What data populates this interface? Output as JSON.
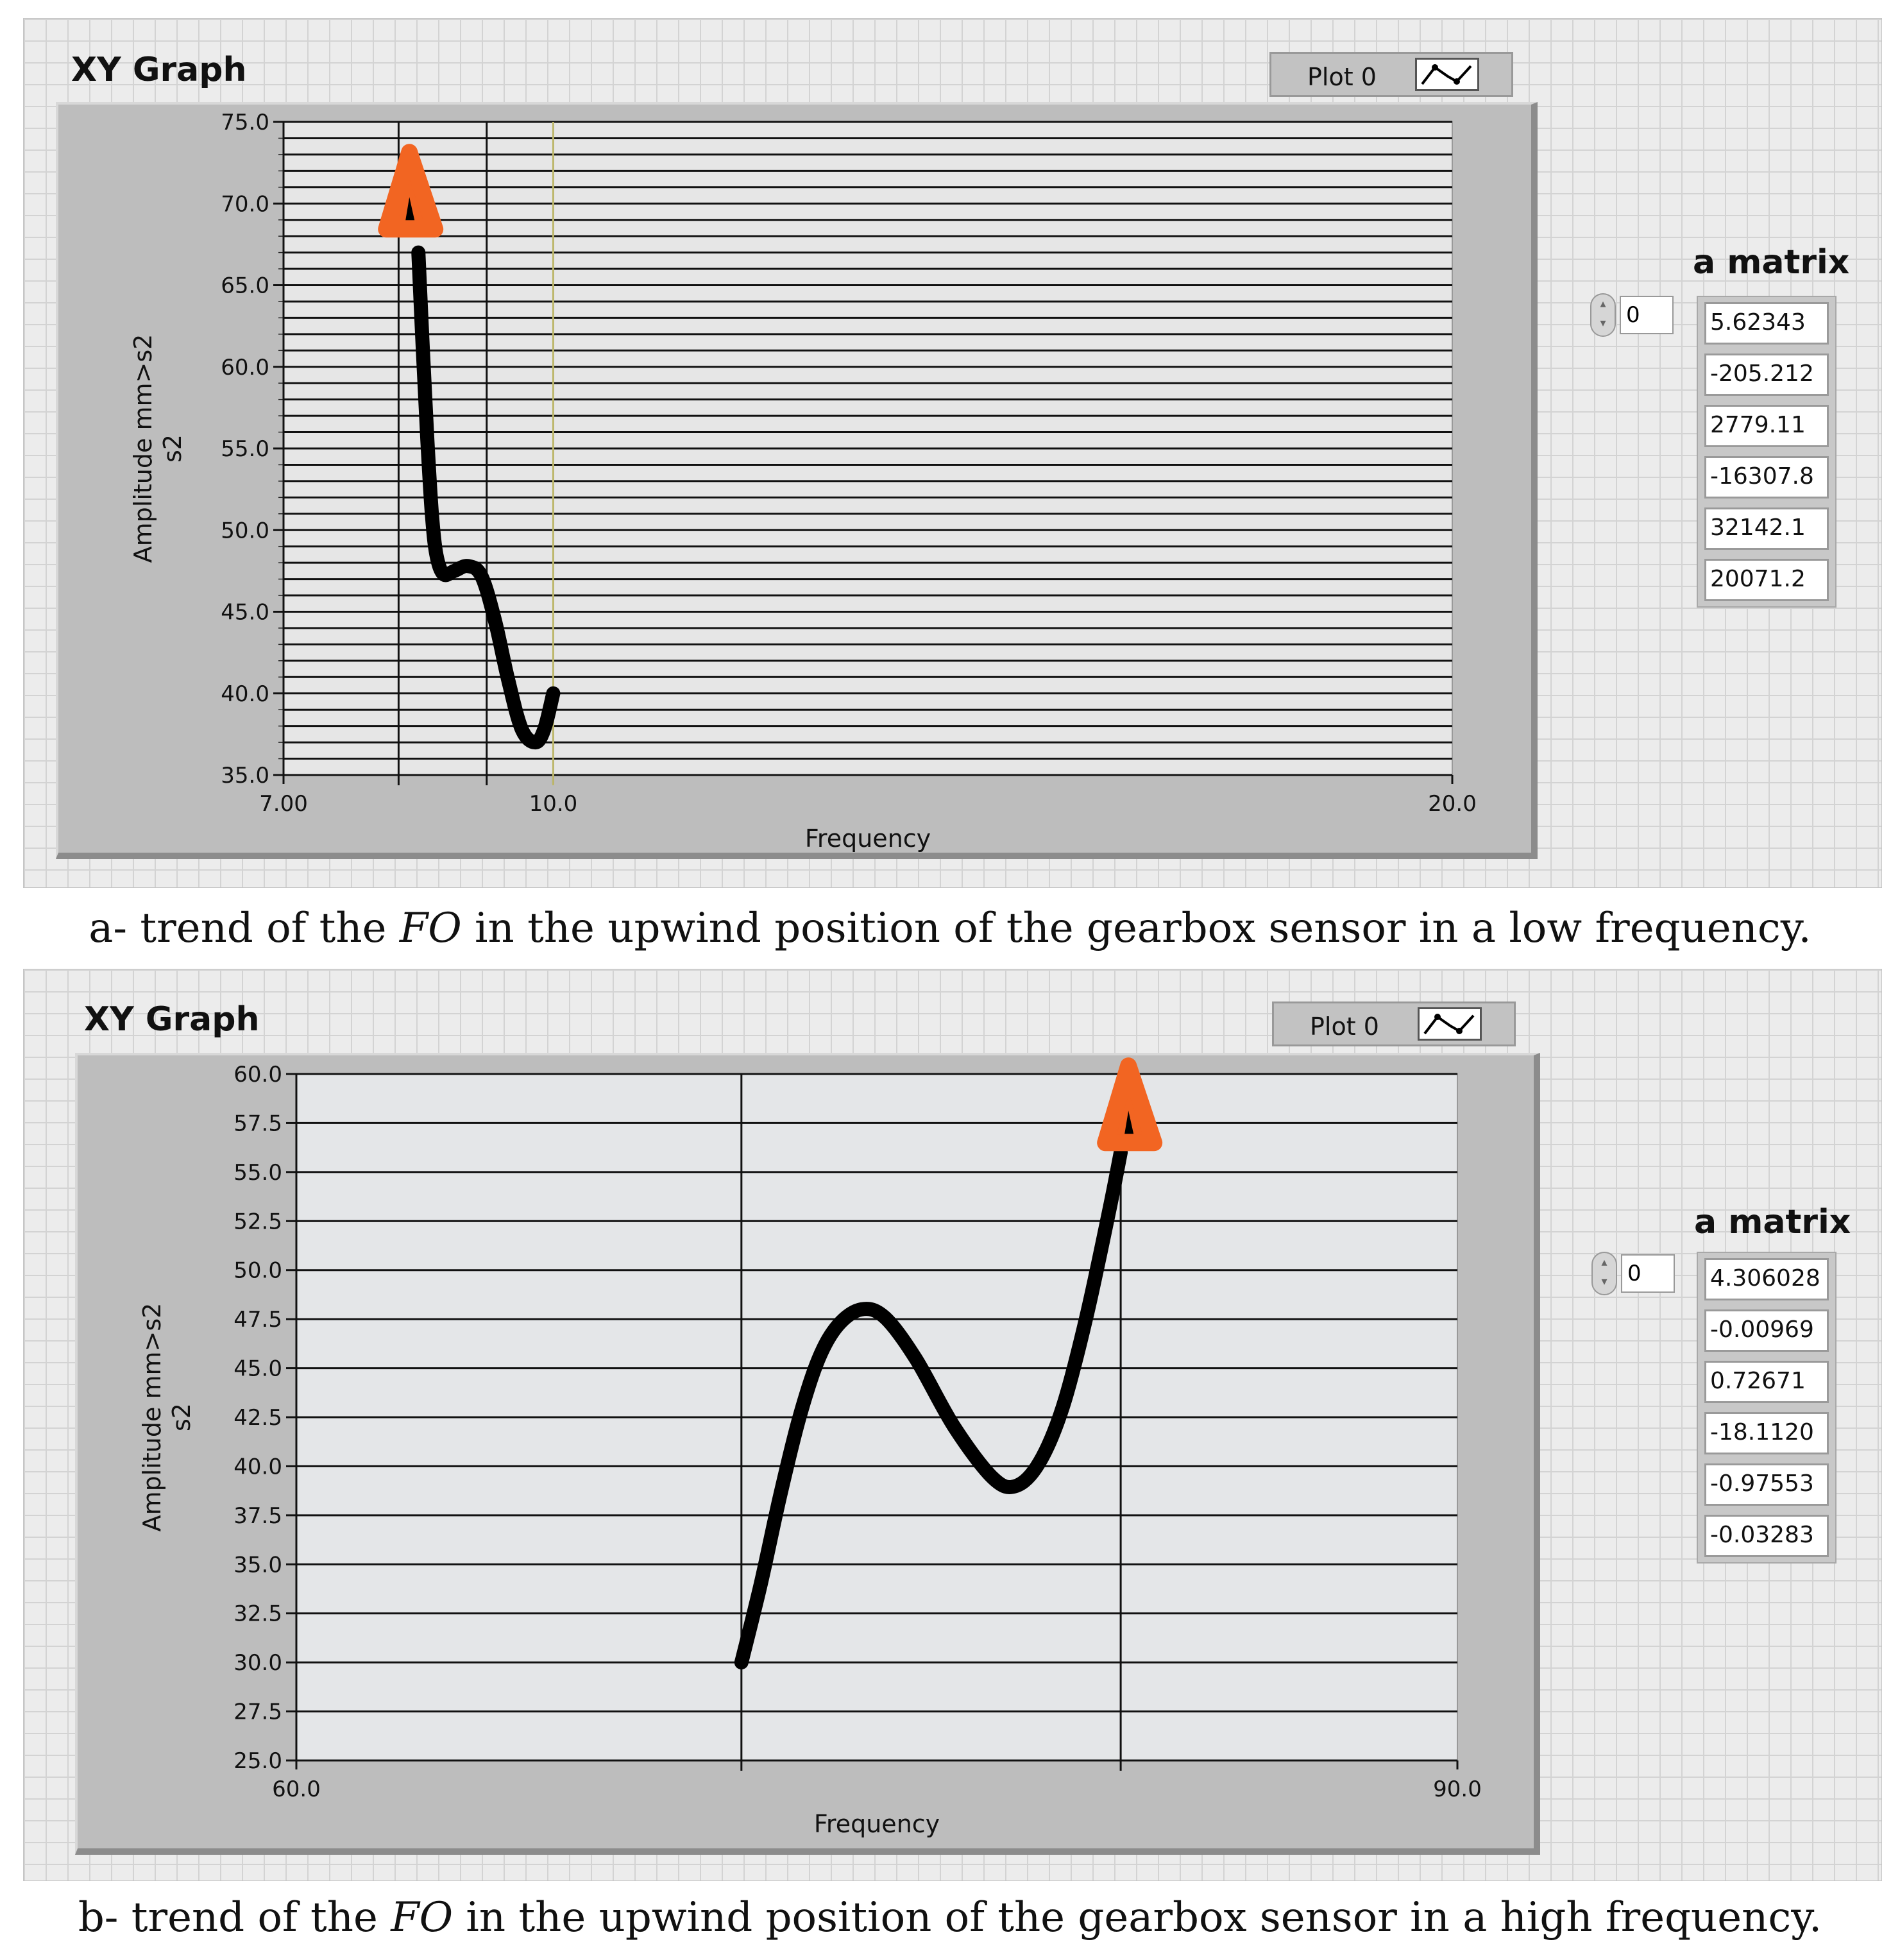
{
  "graphs": [
    {
      "title": "XY Graph",
      "legend_label": "Plot 0",
      "matrix_title": "a matrix",
      "index_value": "0",
      "matrix_values": [
        "5.62343",
        "-205.212",
        "2779.11",
        "-16307.8",
        "32142.1",
        "20071.2"
      ],
      "caption": {
        "prefix": "a- trend of the ",
        "italic": "FO",
        "suffix": " in the upwind position of the gearbox sensor in a low frequency."
      }
    },
    {
      "title": "XY Graph",
      "legend_label": "Plot 0",
      "matrix_title": "a matrix",
      "index_value": "0",
      "matrix_values": [
        "4.306028",
        "-0.00969",
        "0.72671",
        "-18.1120",
        "-0.97553",
        "-0.03283"
      ],
      "caption": {
        "prefix": "b- trend of the ",
        "italic": "FO",
        "suffix": " in the upwind position of the gearbox sensor in a high frequency."
      }
    }
  ],
  "colors": {
    "curve": "#000000",
    "marker": "#f26522",
    "cursor_a": "#bdb76b",
    "plot_bg_a": "#e6e6e6",
    "plot_bg_b": "#e4e6e8"
  },
  "chart_data": [
    {
      "type": "line",
      "xlabel": "Frequency",
      "ylabel": "Amplitude mm>s2 s2",
      "xlim": [
        7.0,
        20.0
      ],
      "ylim": [
        35.0,
        75.0
      ],
      "x_tick_labels": [
        "7.00",
        "10.0",
        "20.0"
      ],
      "x_ticks": [
        7.0,
        10.0,
        20.0
      ],
      "y_tick_labels": [
        "75.0",
        "70.0",
        "65.0",
        "60.0",
        "55.0",
        "50.0",
        "45.0",
        "40.0",
        "35.0"
      ],
      "y_ticks": [
        75,
        70,
        65,
        60,
        55,
        50,
        45,
        40,
        35
      ],
      "grid": true,
      "cursors_x": [
        8.28,
        9.26,
        10.0
      ],
      "series": [
        {
          "x": [
            8.5,
            8.55,
            8.6,
            8.65,
            8.7,
            8.78,
            8.9,
            9.05,
            9.2,
            9.35,
            9.5,
            9.65,
            9.8,
            9.9,
            10.0
          ],
          "y": [
            67.0,
            61.0,
            55.5,
            51.0,
            48.5,
            47.3,
            47.5,
            47.8,
            47.2,
            44.5,
            40.8,
            37.8,
            37.0,
            37.8,
            40.0
          ]
        }
      ],
      "marker": {
        "x": 8.4,
        "y": 70.0
      }
    },
    {
      "type": "line",
      "xlabel": "Frequency",
      "ylabel": "Amplitude mm>s2 s2",
      "xlim": [
        60.0,
        90.0
      ],
      "ylim": [
        25.0,
        60.0
      ],
      "x_tick_labels": [
        "60.0",
        "90.0"
      ],
      "x_ticks": [
        60.0,
        90.0
      ],
      "y_tick_labels": [
        "60.0",
        "57.5",
        "55.0",
        "52.5",
        "50.0",
        "47.5",
        "45.0",
        "42.5",
        "40.0",
        "37.5",
        "35.0",
        "32.5",
        "30.0",
        "27.5",
        "25.0"
      ],
      "y_ticks": [
        60,
        57.5,
        55,
        52.5,
        50,
        47.5,
        45,
        42.5,
        40,
        37.5,
        35,
        32.5,
        30,
        27.5,
        25
      ],
      "grid": true,
      "cursors_x": [
        71.5,
        81.3
      ],
      "series": [
        {
          "x": [
            71.5,
            72.0,
            72.5,
            73.0,
            73.5,
            74.0,
            74.6,
            75.2,
            76.0,
            77.0,
            78.0,
            78.6,
            79.2,
            79.8,
            80.4,
            81.0,
            81.3
          ],
          "y": [
            30.0,
            34.0,
            38.5,
            42.5,
            45.5,
            47.2,
            48.0,
            47.6,
            45.5,
            42.0,
            39.4,
            39.0,
            40.2,
            43.0,
            47.5,
            53.0,
            56.0
          ]
        }
      ],
      "marker": {
        "x": 81.5,
        "y": 57.8
      }
    }
  ]
}
